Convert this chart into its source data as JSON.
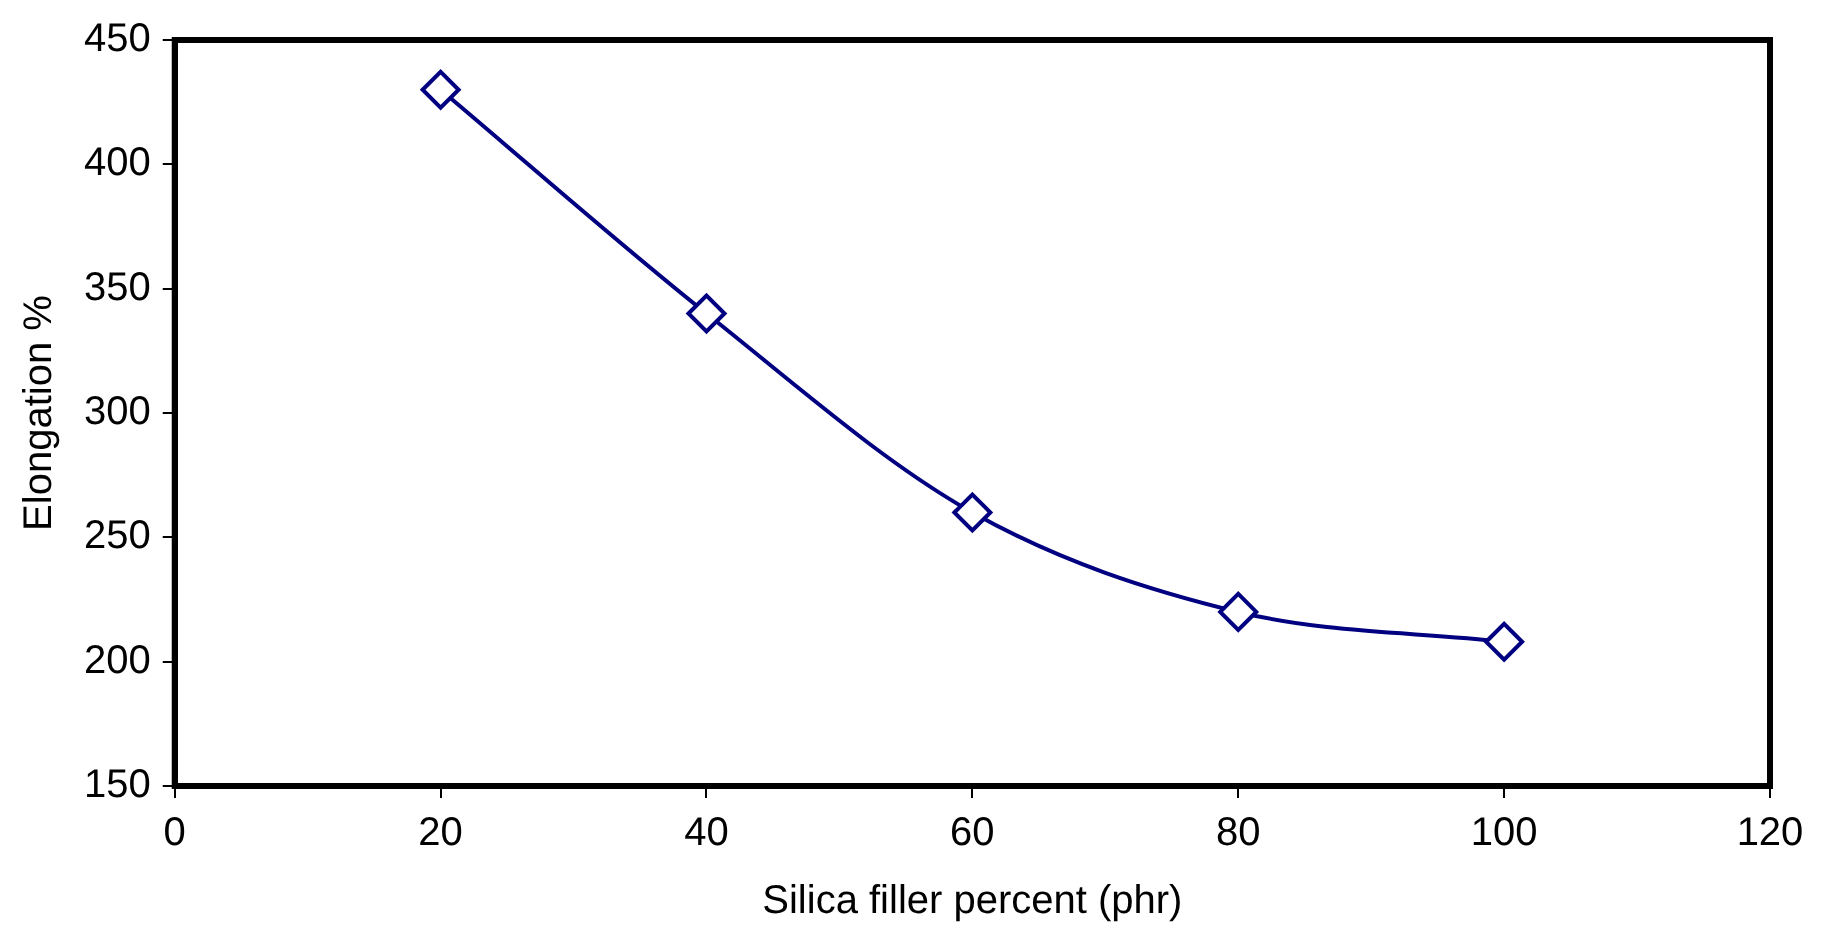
{
  "chart_data": {
    "type": "line",
    "xlabel": "Silica filler percent (phr)",
    "ylabel": "Elongation %",
    "x": [
      20,
      40,
      60,
      80,
      100
    ],
    "series": [
      {
        "color": "#000080",
        "values": [
          430,
          340,
          260,
          220,
          208
        ]
      }
    ],
    "xlim": [
      0,
      120
    ],
    "xticks": [
      0,
      20,
      40,
      60,
      80,
      100,
      120
    ],
    "ylim": [
      150,
      450
    ],
    "yticks": [
      150,
      200,
      250,
      300,
      350,
      400,
      450
    ],
    "grid": false,
    "legend": false,
    "marker": "diamond",
    "line_style": "solid"
  }
}
